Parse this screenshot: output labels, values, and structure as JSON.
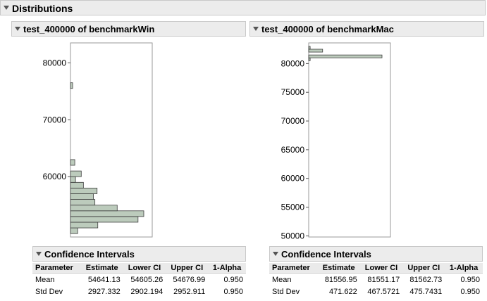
{
  "outline": {
    "title": "Distributions"
  },
  "panels": [
    {
      "title": "test_400000 of benchmarkWin",
      "axis": {
        "min": 49400,
        "max": 83500,
        "ticks": [
          60000,
          70000,
          80000
        ],
        "tick_labels": [
          "60000",
          "70000",
          "80000"
        ]
      },
      "bars": [
        {
          "lo": 50000,
          "hi": 51000,
          "count": 10
        },
        {
          "lo": 51000,
          "hi": 52000,
          "count": 38
        },
        {
          "lo": 52000,
          "hi": 53000,
          "count": 94
        },
        {
          "lo": 53000,
          "hi": 54000,
          "count": 102
        },
        {
          "lo": 54000,
          "hi": 55000,
          "count": 65
        },
        {
          "lo": 55000,
          "hi": 56000,
          "count": 34
        },
        {
          "lo": 56000,
          "hi": 57000,
          "count": 32
        },
        {
          "lo": 57000,
          "hi": 58000,
          "count": 37
        },
        {
          "lo": 58000,
          "hi": 59000,
          "count": 18
        },
        {
          "lo": 59000,
          "hi": 60000,
          "count": 7
        },
        {
          "lo": 60000,
          "hi": 61000,
          "count": 15
        },
        {
          "lo": 62000,
          "hi": 63000,
          "count": 6
        },
        {
          "lo": 75500,
          "hi": 76500,
          "count": 3
        }
      ],
      "ci_section": {
        "title": "Confidence Intervals",
        "columns": [
          "Parameter",
          "Estimate",
          "Lower CI",
          "Upper CI",
          "1-Alpha"
        ],
        "rows": [
          [
            "Mean",
            "54641.13",
            "54605.26",
            "54676.99",
            "0.950"
          ],
          [
            "Std Dev",
            "2927.332",
            "2902.194",
            "2952.911",
            "0.950"
          ]
        ]
      }
    },
    {
      "title": "test_400000 of benchmarkMac",
      "axis": {
        "min": 49800,
        "max": 83600,
        "ticks": [
          50000,
          55000,
          60000,
          65000,
          70000,
          75000,
          80000
        ],
        "tick_labels": [
          "50000",
          "55000",
          "60000",
          "65000",
          "70000",
          "75000",
          "80000"
        ]
      },
      "bars": [
        {
          "lo": 80500,
          "hi": 81000,
          "count": 2
        },
        {
          "lo": 81000,
          "hi": 81500,
          "count": 100
        },
        {
          "lo": 82000,
          "hi": 82500,
          "count": 19
        },
        {
          "lo": 82500,
          "hi": 83000,
          "count": 2
        }
      ],
      "ci_section": {
        "title": "Confidence Intervals",
        "columns": [
          "Parameter",
          "Estimate",
          "Lower CI",
          "Upper CI",
          "1-Alpha"
        ],
        "rows": [
          [
            "Mean",
            "81556.95",
            "81551.17",
            "81562.73",
            "0.950"
          ],
          [
            "Std Dev",
            "471.622",
            "467.5721",
            "475.7431",
            "0.950"
          ]
        ]
      }
    }
  ],
  "colors": {
    "bar_fill": "#bccbbc",
    "bar_stroke": "#3c3c3c",
    "header_bg": "#ececec"
  }
}
